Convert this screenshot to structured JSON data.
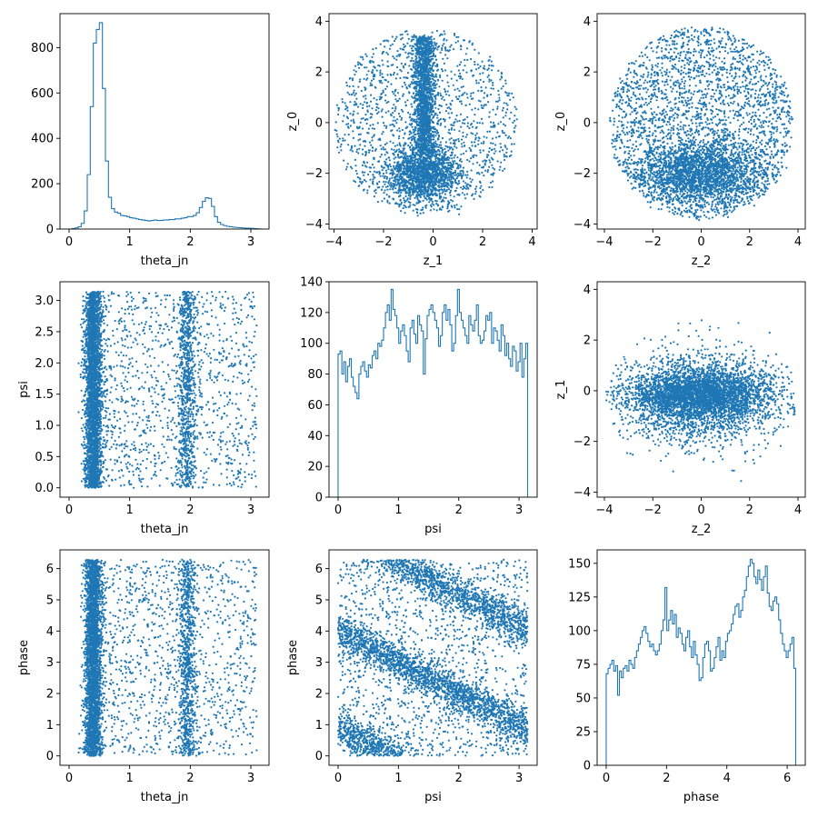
{
  "colors": {
    "series": "#1f77b4",
    "axes": "#000000",
    "background": "#ffffff"
  },
  "chart_data": [
    {
      "id": "p00",
      "type": "histogram",
      "xlabel": "theta_jn",
      "ylabel": "",
      "xlim": [
        -0.15,
        3.3
      ],
      "ylim": [
        0,
        950
      ],
      "xticks": [
        0,
        1,
        2,
        3
      ],
      "yticks": [
        0,
        200,
        400,
        600,
        800
      ],
      "bin_start": 0.0,
      "bin_width": 0.05,
      "values": [
        0,
        2,
        5,
        10,
        25,
        80,
        240,
        540,
        820,
        880,
        910,
        620,
        300,
        140,
        90,
        75,
        70,
        60,
        58,
        55,
        50,
        48,
        45,
        42,
        40,
        38,
        36,
        38,
        40,
        38,
        38,
        40,
        40,
        42,
        42,
        45,
        45,
        48,
        50,
        55,
        55,
        60,
        72,
        95,
        122,
        138,
        135,
        100,
        55,
        30,
        20,
        15,
        12,
        10,
        8,
        7,
        6,
        5,
        4,
        4,
        3,
        2,
        1,
        0
      ]
    },
    {
      "id": "p01",
      "type": "scatter",
      "xlabel": "z_1",
      "ylabel": "z_0",
      "xlim": [
        -4.2,
        4.2
      ],
      "ylim": [
        -4.2,
        4.3
      ],
      "xticks": [
        -4,
        -2,
        0,
        2,
        4
      ],
      "yticks": [
        -4,
        -2,
        0,
        2,
        4
      ],
      "pattern": "ring_vertical_band",
      "n_points": 4500,
      "seed": 11
    },
    {
      "id": "p02",
      "type": "scatter",
      "xlabel": "z_2",
      "ylabel": "z_0",
      "xlim": [
        -4.3,
        4.3
      ],
      "ylim": [
        -4.2,
        4.3
      ],
      "xticks": [
        -4,
        -2,
        0,
        2,
        4
      ],
      "yticks": [
        -4,
        -2,
        0,
        2,
        4
      ],
      "pattern": "disk_lower_dense",
      "n_points": 4500,
      "seed": 23
    },
    {
      "id": "p10",
      "type": "scatter",
      "xlabel": "theta_jn",
      "ylabel": "psi",
      "xlim": [
        -0.15,
        3.3
      ],
      "ylim": [
        -0.15,
        3.3
      ],
      "xticks": [
        0,
        1,
        2,
        3
      ],
      "yticks": [
        0.0,
        0.5,
        1.0,
        1.5,
        2.0,
        2.5,
        3.0
      ],
      "tick_format": "fixed1",
      "pattern": "theta_bands",
      "y_range": [
        0,
        3.14159
      ],
      "n_points": 5000,
      "seed": 37
    },
    {
      "id": "p11",
      "type": "histogram",
      "xlabel": "psi",
      "ylabel": "",
      "xlim": [
        -0.15,
        3.3
      ],
      "ylim": [
        0,
        140
      ],
      "xticks": [
        0,
        1,
        2,
        3
      ],
      "yticks": [
        0,
        20,
        40,
        60,
        80,
        100,
        120,
        140
      ],
      "bin_start": 0.0,
      "bin_width": 0.0314159,
      "values": [
        93,
        95,
        80,
        88,
        75,
        85,
        90,
        78,
        72,
        68,
        64,
        80,
        85,
        88,
        82,
        78,
        86,
        84,
        92,
        95,
        90,
        100,
        98,
        102,
        110,
        120,
        125,
        115,
        135,
        122,
        118,
        110,
        100,
        108,
        112,
        105,
        95,
        88,
        110,
        115,
        106,
        100,
        118,
        112,
        108,
        80,
        103,
        118,
        122,
        125,
        120,
        115,
        110,
        98,
        105,
        120,
        125,
        115,
        122,
        112,
        95,
        100,
        118,
        135,
        120,
        115,
        110,
        105,
        100,
        118,
        112,
        108,
        115,
        125,
        105,
        100,
        102,
        108,
        118,
        115,
        120,
        100,
        110,
        108,
        102,
        95,
        112,
        105,
        92,
        100,
        90,
        85,
        98,
        95,
        82,
        88,
        100,
        78,
        90,
        100
      ]
    },
    {
      "id": "p12",
      "type": "scatter",
      "xlabel": "z_2",
      "ylabel": "z_1",
      "xlim": [
        -4.3,
        4.3
      ],
      "ylim": [
        -4.2,
        4.3
      ],
      "xticks": [
        -4,
        -2,
        0,
        2,
        4
      ],
      "yticks": [
        -4,
        -2,
        0,
        2,
        4
      ],
      "pattern": "ellipse_horizontal",
      "n_points": 4500,
      "seed": 51
    },
    {
      "id": "p20",
      "type": "scatter",
      "xlabel": "theta_jn",
      "ylabel": "phase",
      "xlim": [
        -0.15,
        3.3
      ],
      "ylim": [
        -0.3,
        6.6
      ],
      "xticks": [
        0,
        1,
        2,
        3
      ],
      "yticks": [
        0,
        1,
        2,
        3,
        4,
        5,
        6
      ],
      "pattern": "theta_bands",
      "y_range": [
        0,
        6.28318
      ],
      "n_points": 5000,
      "seed": 67
    },
    {
      "id": "p21",
      "type": "scatter",
      "xlabel": "psi",
      "ylabel": "phase",
      "xlim": [
        -0.15,
        3.3
      ],
      "ylim": [
        -0.3,
        6.6
      ],
      "xticks": [
        0,
        1,
        2,
        3
      ],
      "yticks": [
        0,
        1,
        2,
        3,
        4,
        5,
        6
      ],
      "pattern": "diagonal_bands",
      "n_points": 5000,
      "seed": 79
    },
    {
      "id": "p22",
      "type": "histogram",
      "xlabel": "phase",
      "ylabel": "",
      "xlim": [
        -0.3,
        6.6
      ],
      "ylim": [
        0,
        160
      ],
      "xticks": [
        0,
        2,
        4,
        6
      ],
      "yticks": [
        0,
        25,
        50,
        75,
        100,
        125,
        150
      ],
      "bin_start": 0.0,
      "bin_width": 0.0628318,
      "values": [
        68,
        72,
        75,
        78,
        70,
        74,
        52,
        70,
        65,
        72,
        74,
        70,
        78,
        75,
        72,
        80,
        85,
        90,
        95,
        100,
        103,
        98,
        92,
        88,
        90,
        85,
        82,
        85,
        90,
        100,
        108,
        132,
        100,
        108,
        115,
        105,
        112,
        95,
        102,
        98,
        90,
        85,
        95,
        100,
        88,
        80,
        92,
        82,
        75,
        63,
        65,
        80,
        90,
        92,
        85,
        70,
        72,
        80,
        88,
        95,
        78,
        85,
        80,
        92,
        98,
        100,
        105,
        112,
        118,
        120,
        110,
        115,
        125,
        130,
        140,
        148,
        153,
        150,
        140,
        135,
        145,
        138,
        130,
        140,
        148,
        128,
        118,
        115,
        122,
        125,
        120,
        108,
        98,
        90,
        85,
        80,
        85,
        90,
        95,
        72
      ]
    }
  ]
}
